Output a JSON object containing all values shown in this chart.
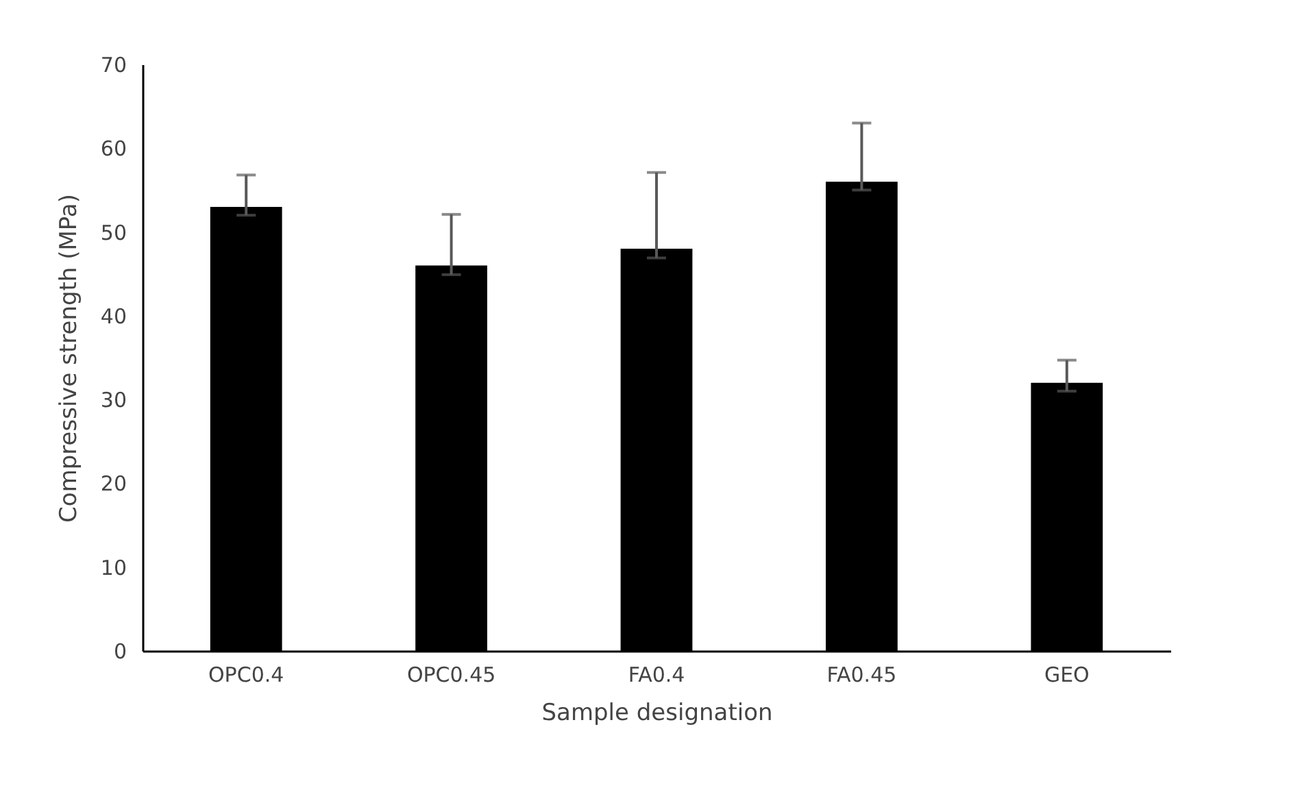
{
  "chart_data": {
    "type": "bar",
    "xlabel": "Sample designation",
    "ylabel": "Compressive strength (MPa)",
    "categories": [
      "OPC0.4",
      "OPC0.45",
      "FA0.4",
      "FA0.45",
      "GEO"
    ],
    "values": [
      53.0,
      46.0,
      48.0,
      56.0,
      32.0
    ],
    "errors": [
      [
        52.0,
        56.8
      ],
      [
        44.9,
        52.1
      ],
      [
        46.9,
        57.1
      ],
      [
        55.0,
        63.0
      ],
      [
        31.0,
        34.7
      ]
    ],
    "color": "#000000",
    "ylim": [
      0,
      70
    ],
    "yticks": [
      0,
      10,
      20,
      30,
      40,
      50,
      60,
      70
    ],
    "grid": false
  }
}
